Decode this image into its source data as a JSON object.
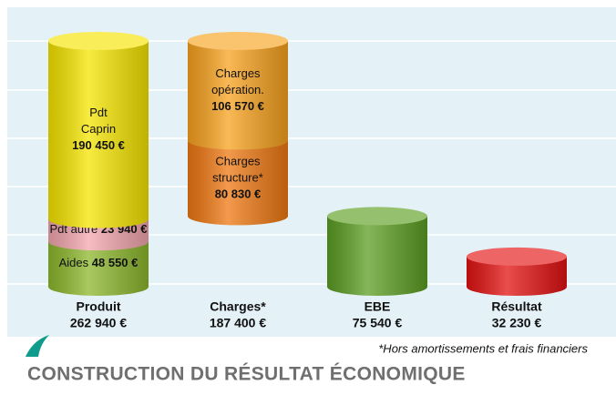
{
  "chart_data": {
    "type": "cylinder-waterfall",
    "title": "CONSTRUCTION DU RÉSULTAT ÉCONOMIQUE",
    "footnote": "*Hors amortissements et frais financiers",
    "bars": [
      {
        "category": "Produit",
        "total": 262940,
        "total_label": "262 940 €",
        "segments": [
          {
            "name": [
              "Aides"
            ],
            "value": 48550,
            "value_label": "48 550 €",
            "color": "#8db82c"
          },
          {
            "name": [
              "Pdt autre"
            ],
            "value": 23940,
            "value_label": "23 940 €",
            "color": "#f3a6ae"
          },
          {
            "name": [
              "Pdt",
              "Caprin"
            ],
            "value": 190450,
            "value_label": "190 450 €",
            "color": "#f6e500"
          }
        ]
      },
      {
        "category": "Charges*",
        "total": 187400,
        "total_label": "187 400 €",
        "floating": true,
        "segments": [
          {
            "name": [
              "Charges",
              "structure*"
            ],
            "value": 80830,
            "value_label": "80 830 €",
            "color": "#ef7812"
          },
          {
            "name": [
              "Charges",
              "opération."
            ],
            "value": 106570,
            "value_label": "106 570 €",
            "color": "#f8a21e"
          }
        ]
      },
      {
        "category": "EBE",
        "total": 75540,
        "total_label": "75 540 €",
        "color": "#5c9f22"
      },
      {
        "category": "Résultat",
        "total": 32230,
        "total_label": "32 230 €",
        "color": "#e31212"
      }
    ]
  }
}
